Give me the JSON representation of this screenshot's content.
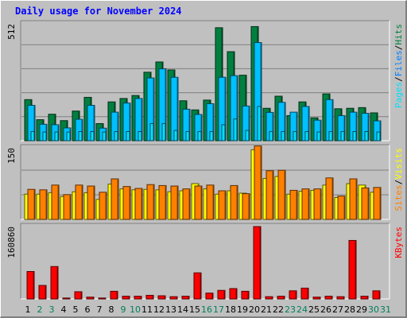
{
  "title": "Daily usage for November 2024",
  "colors": {
    "hits": "#008040",
    "files": "#00c0ff",
    "pages": "#00e0ff",
    "visits": "#ffff00",
    "sites": "#ff8000",
    "kbytes": "#ff0000",
    "title": "#0000ff",
    "weekend": "#00805c",
    "weekday": "#000000",
    "panel": "#c0c0c0",
    "grid": "#808080"
  },
  "chart_data": [
    {
      "type": "bar",
      "name": "hits-files-pages",
      "ylabel_top": "512",
      "ylim": [
        0,
        512
      ],
      "legend": [
        {
          "label": "Pages",
          "color": "#00e0ff"
        },
        {
          "label": "/",
          "color": "#000000"
        },
        {
          "label": "Files",
          "color": "#0080ff"
        },
        {
          "label": "/",
          "color": "#000000"
        },
        {
          "label": "Hits",
          "color": "#008040"
        }
      ],
      "categories": [
        "1",
        "2",
        "3",
        "4",
        "5",
        "6",
        "7",
        "8",
        "9",
        "10",
        "11",
        "12",
        "13",
        "14",
        "15",
        "16",
        "17",
        "18",
        "19",
        "20",
        "21",
        "22",
        "23",
        "24",
        "25",
        "26",
        "27",
        "28",
        "29",
        "30"
      ],
      "series": [
        {
          "name": "Hits",
          "values": [
            180,
            92,
            116,
            88,
            130,
            190,
            75,
            170,
            185,
            198,
            300,
            345,
            310,
            175,
            135,
            178,
            495,
            390,
            287,
            500,
            142,
            195,
            110,
            170,
            100,
            205,
            140,
            142,
            145,
            122
          ]
        },
        {
          "name": "Files",
          "values": [
            155,
            72,
            70,
            56,
            94,
            155,
            55,
            125,
            165,
            185,
            275,
            315,
            278,
            138,
            115,
            162,
            278,
            285,
            152,
            430,
            124,
            168,
            125,
            150,
            90,
            180,
            110,
            125,
            120,
            87
          ]
        },
        {
          "name": "Pages",
          "values": [
            40,
            38,
            38,
            38,
            40,
            40,
            38,
            40,
            40,
            40,
            75,
            75,
            45,
            40,
            40,
            40,
            70,
            95,
            45,
            150,
            40,
            40,
            40,
            40,
            38,
            40,
            40,
            40,
            40,
            38
          ]
        }
      ]
    },
    {
      "type": "bar",
      "name": "visits-sites",
      "ylabel_top": "150",
      "ylim": [
        0,
        150
      ],
      "legend": [
        {
          "label": "Sites",
          "color": "#ff8000"
        },
        {
          "label": "/",
          "color": "#000000"
        },
        {
          "label": "Visits",
          "color": "#ffff00"
        }
      ],
      "categories": [
        "1",
        "2",
        "3",
        "4",
        "5",
        "6",
        "7",
        "8",
        "9",
        "10",
        "11",
        "12",
        "13",
        "14",
        "15",
        "16",
        "17",
        "18",
        "19",
        "20",
        "21",
        "22",
        "23",
        "24",
        "25",
        "26",
        "27",
        "28",
        "29",
        "30"
      ],
      "series": [
        {
          "name": "Visits",
          "values": [
            53,
            53,
            56,
            48,
            58,
            56,
            42,
            74,
            64,
            62,
            63,
            62,
            58,
            60,
            75,
            64,
            53,
            60,
            55,
            146,
            86,
            90,
            53,
            59,
            61,
            72,
            46,
            75,
            72,
            57
          ]
        },
        {
          "name": "Sites",
          "values": [
            63,
            62,
            72,
            52,
            72,
            70,
            57,
            85,
            69,
            65,
            73,
            71,
            70,
            64,
            70,
            72,
            60,
            71,
            54,
            154,
            102,
            103,
            61,
            64,
            64,
            87,
            49,
            85,
            66,
            67
          ]
        }
      ]
    },
    {
      "type": "bar",
      "name": "kbytes",
      "ylabel_top": "160860",
      "ylim": [
        0,
        160860
      ],
      "legend": [
        {
          "label": "KBytes",
          "color": "#ff0000"
        }
      ],
      "categories": [
        "1",
        "2",
        "3",
        "4",
        "5",
        "6",
        "7",
        "8",
        "9",
        "10",
        "11",
        "12",
        "13",
        "14",
        "15",
        "16",
        "17",
        "18",
        "19",
        "20",
        "21",
        "22",
        "23",
        "24",
        "25",
        "26",
        "27",
        "28",
        "29",
        "30"
      ],
      "series": [
        {
          "name": "KBytes",
          "values": [
            61000,
            30000,
            72000,
            2000,
            16000,
            4000,
            2000,
            17000,
            6000,
            6000,
            8000,
            7000,
            5000,
            6000,
            58000,
            13000,
            19000,
            23000,
            17000,
            160860,
            5000,
            6000,
            18000,
            24000,
            4000,
            6000,
            5000,
            130000,
            6000,
            18000
          ]
        }
      ]
    }
  ],
  "x_axis": {
    "labels": [
      "1",
      "2",
      "3",
      "4",
      "5",
      "6",
      "7",
      "8",
      "9",
      "10",
      "11",
      "12",
      "13",
      "14",
      "15",
      "16",
      "17",
      "18",
      "19",
      "20",
      "21",
      "22",
      "23",
      "24",
      "25",
      "26",
      "27",
      "28",
      "29",
      "30",
      "31"
    ],
    "weekend_days": [
      "2",
      "3",
      "9",
      "10",
      "16",
      "17",
      "23",
      "24",
      "30",
      "31"
    ]
  }
}
